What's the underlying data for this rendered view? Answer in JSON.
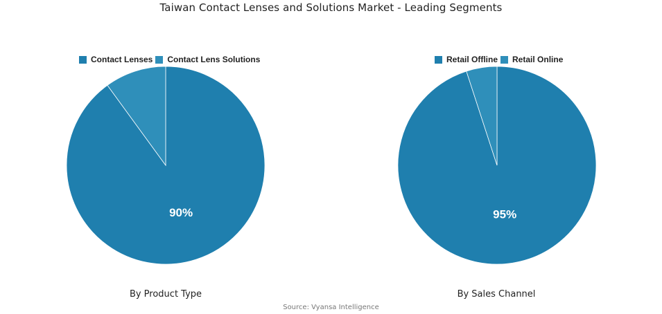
{
  "title": "Taiwan Contact Lenses and Solutions Market - Leading Segments",
  "source": "Source: Vyansa Intelligence",
  "chart_data": [
    {
      "type": "pie",
      "subtitle": "By Product Type",
      "legend_position": "top",
      "slices": [
        {
          "label": "Contact Lenses",
          "value": 90,
          "color": "#1f7fae",
          "data_label": "90%"
        },
        {
          "label": "Contact Lens Solutions",
          "value": 10,
          "color": "#2f8fba",
          "data_label": ""
        }
      ]
    },
    {
      "type": "pie",
      "subtitle": "By Sales Channel",
      "legend_position": "top",
      "slices": [
        {
          "label": "Retail Offline",
          "value": 95,
          "color": "#1f7fae",
          "data_label": "95%"
        },
        {
          "label": "Retail Online",
          "value": 5,
          "color": "#2f8fba",
          "data_label": ""
        }
      ]
    }
  ]
}
